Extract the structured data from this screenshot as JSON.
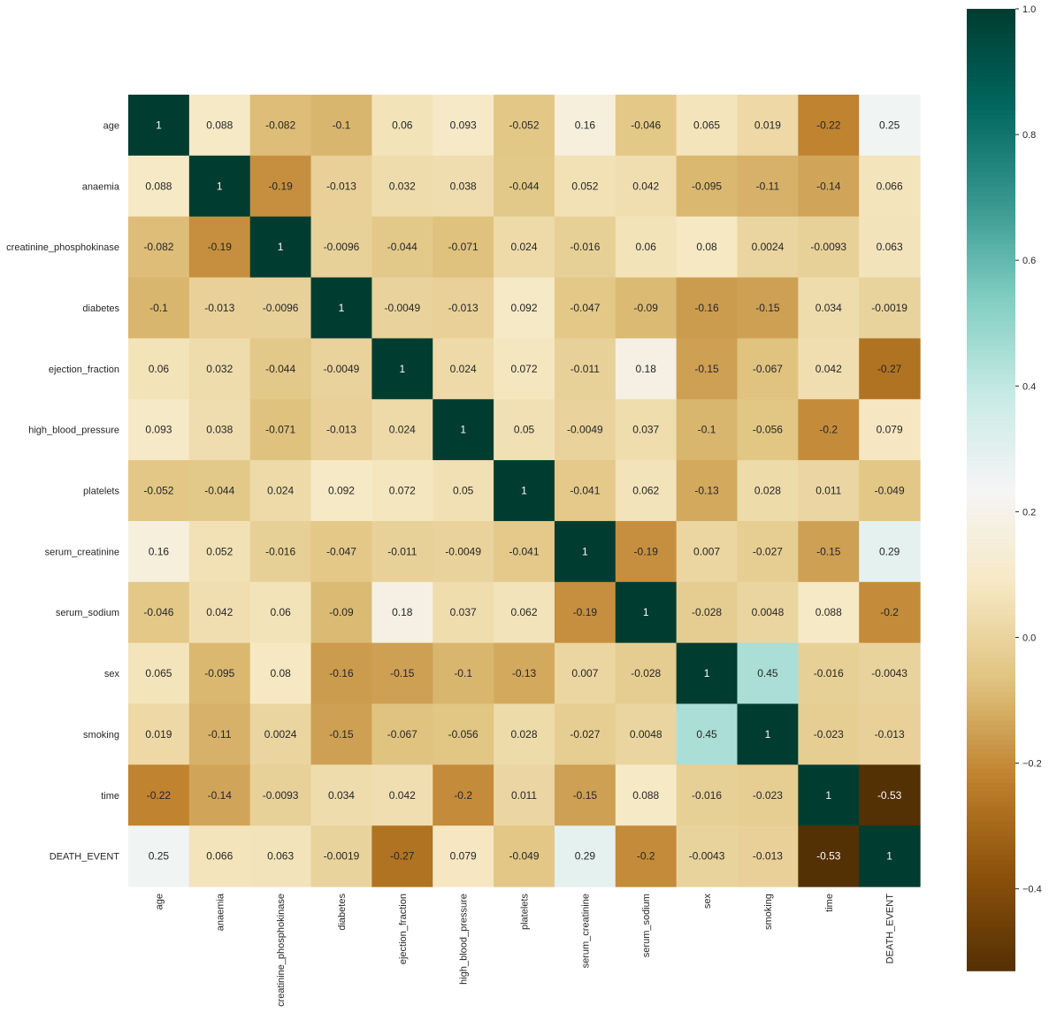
{
  "chart_data": {
    "type": "heatmap",
    "title": "",
    "xlabel": "",
    "ylabel": "",
    "colormap": "BrBG",
    "annotated": true,
    "categories": [
      "age",
      "anaemia",
      "creatinine_phosphokinase",
      "diabetes",
      "ejection_fraction",
      "high_blood_pressure",
      "platelets",
      "serum_creatinine",
      "serum_sodium",
      "sex",
      "smoking",
      "time",
      "DEATH_EVENT"
    ],
    "annotations": [
      [
        "1",
        "0.088",
        "-0.082",
        "-0.1",
        "0.06",
        "0.093",
        "-0.052",
        "0.16",
        "-0.046",
        "0.065",
        "0.019",
        "-0.22",
        "0.25"
      ],
      [
        "0.088",
        "1",
        "-0.19",
        "-0.013",
        "0.032",
        "0.038",
        "-0.044",
        "0.052",
        "0.042",
        "-0.095",
        "-0.11",
        "-0.14",
        "0.066"
      ],
      [
        "-0.082",
        "-0.19",
        "1",
        "-0.0096",
        "-0.044",
        "-0.071",
        "0.024",
        "-0.016",
        "0.06",
        "0.08",
        "0.0024",
        "-0.0093",
        "0.063"
      ],
      [
        "-0.1",
        "-0.013",
        "-0.0096",
        "1",
        "-0.0049",
        "-0.013",
        "0.092",
        "-0.047",
        "-0.09",
        "-0.16",
        "-0.15",
        "0.034",
        "-0.0019"
      ],
      [
        "0.06",
        "0.032",
        "-0.044",
        "-0.0049",
        "1",
        "0.024",
        "0.072",
        "-0.011",
        "0.18",
        "-0.15",
        "-0.067",
        "0.042",
        "-0.27"
      ],
      [
        "0.093",
        "0.038",
        "-0.071",
        "-0.013",
        "0.024",
        "1",
        "0.05",
        "-0.0049",
        "0.037",
        "-0.1",
        "-0.056",
        "-0.2",
        "0.079"
      ],
      [
        "-0.052",
        "-0.044",
        "0.024",
        "0.092",
        "0.072",
        "0.05",
        "1",
        "-0.041",
        "0.062",
        "-0.13",
        "0.028",
        "0.011",
        "-0.049"
      ],
      [
        "0.16",
        "0.052",
        "-0.016",
        "-0.047",
        "-0.011",
        "-0.0049",
        "-0.041",
        "1",
        "-0.19",
        "0.007",
        "-0.027",
        "-0.15",
        "0.29"
      ],
      [
        "-0.046",
        "0.042",
        "0.06",
        "-0.09",
        "0.18",
        "0.037",
        "0.062",
        "-0.19",
        "1",
        "-0.028",
        "0.0048",
        "0.088",
        "-0.2"
      ],
      [
        "0.065",
        "-0.095",
        "0.08",
        "-0.16",
        "-0.15",
        "-0.1",
        "-0.13",
        "0.007",
        "-0.028",
        "1",
        "0.45",
        "-0.016",
        "-0.0043"
      ],
      [
        "0.019",
        "-0.11",
        "0.0024",
        "-0.15",
        "-0.067",
        "-0.056",
        "0.028",
        "-0.027",
        "0.0048",
        "0.45",
        "1",
        "-0.023",
        "-0.013"
      ],
      [
        "-0.22",
        "-0.14",
        "-0.0093",
        "0.034",
        "0.042",
        "-0.2",
        "0.011",
        "-0.15",
        "0.088",
        "-0.016",
        "-0.023",
        "1",
        "-0.53"
      ],
      [
        "0.25",
        "0.066",
        "0.063",
        "-0.0019",
        "-0.27",
        "0.079",
        "-0.049",
        "0.29",
        "-0.2",
        "-0.0043",
        "-0.013",
        "-0.53",
        "1"
      ]
    ],
    "colorbar": {
      "vmin": -0.53,
      "vmax": 1,
      "ticks": [
        -0.4,
        -0.2,
        0.0,
        0.2,
        0.4,
        0.6,
        0.8,
        1.0
      ],
      "tick_labels": [
        "−0.4",
        "−0.2",
        "0.0",
        "0.2",
        "0.4",
        "0.6",
        "0.8",
        "1.0"
      ]
    },
    "grid": false,
    "legend": "colorbar-right"
  }
}
